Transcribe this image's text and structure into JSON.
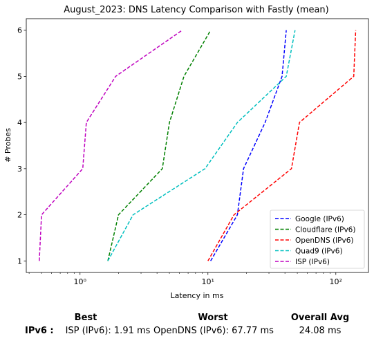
{
  "chart_data": {
    "type": "line",
    "title": "August_2023: DNS Latency Comparison with Fastly (mean)",
    "xlabel": "Latency in ms",
    "ylabel": "# Probes",
    "xscale": "log",
    "xlim": [
      0.38,
      180
    ],
    "ylim": [
      0.75,
      6.25
    ],
    "xticks": [
      {
        "value": 1,
        "label": "10⁰"
      },
      {
        "value": 10,
        "label": "10¹"
      },
      {
        "value": 100,
        "label": "10²"
      }
    ],
    "yticks": [
      1,
      2,
      3,
      4,
      5,
      6
    ],
    "grid": false,
    "legend_position": "bottom-right",
    "series": [
      {
        "name": "Google (IPv6)",
        "color": "#0000ff",
        "points": [
          [
            10.5,
            1
          ],
          [
            17.0,
            2
          ],
          [
            19.0,
            3
          ],
          [
            28.0,
            4
          ],
          [
            38.0,
            5
          ],
          [
            41.0,
            6
          ]
        ]
      },
      {
        "name": "Cloudflare (IPv6)",
        "color": "#008000",
        "points": [
          [
            1.65,
            1
          ],
          [
            2.0,
            2
          ],
          [
            4.4,
            3
          ],
          [
            5.0,
            4
          ],
          [
            6.5,
            5
          ],
          [
            10.5,
            6
          ]
        ]
      },
      {
        "name": "OpenDNS (IPv6)",
        "color": "#ff0000",
        "points": [
          [
            10.0,
            1
          ],
          [
            16.0,
            2
          ],
          [
            45.0,
            3
          ],
          [
            52.0,
            4
          ],
          [
            138.0,
            5
          ],
          [
            143.0,
            6
          ]
        ]
      },
      {
        "name": "Quad9 (IPv6)",
        "color": "#00bfbf",
        "points": [
          [
            1.65,
            1
          ],
          [
            2.6,
            2
          ],
          [
            9.5,
            3
          ],
          [
            17.0,
            4
          ],
          [
            41.0,
            5
          ],
          [
            48.0,
            6
          ]
        ]
      },
      {
        "name": "ISP (IPv6)",
        "color": "#bf00bf",
        "points": [
          [
            0.48,
            1
          ],
          [
            0.5,
            2
          ],
          [
            1.05,
            3
          ],
          [
            1.12,
            4
          ],
          [
            1.9,
            5
          ],
          [
            6.3,
            6
          ]
        ]
      }
    ]
  },
  "stats": {
    "headers": {
      "best": "Best",
      "worst": "Worst",
      "overall": "Overall Avg"
    },
    "row_label": "IPv6 :",
    "best": "ISP (IPv6): 1.91 ms",
    "worst": "OpenDNS (IPv6): 67.77 ms",
    "overall": "24.08 ms"
  }
}
